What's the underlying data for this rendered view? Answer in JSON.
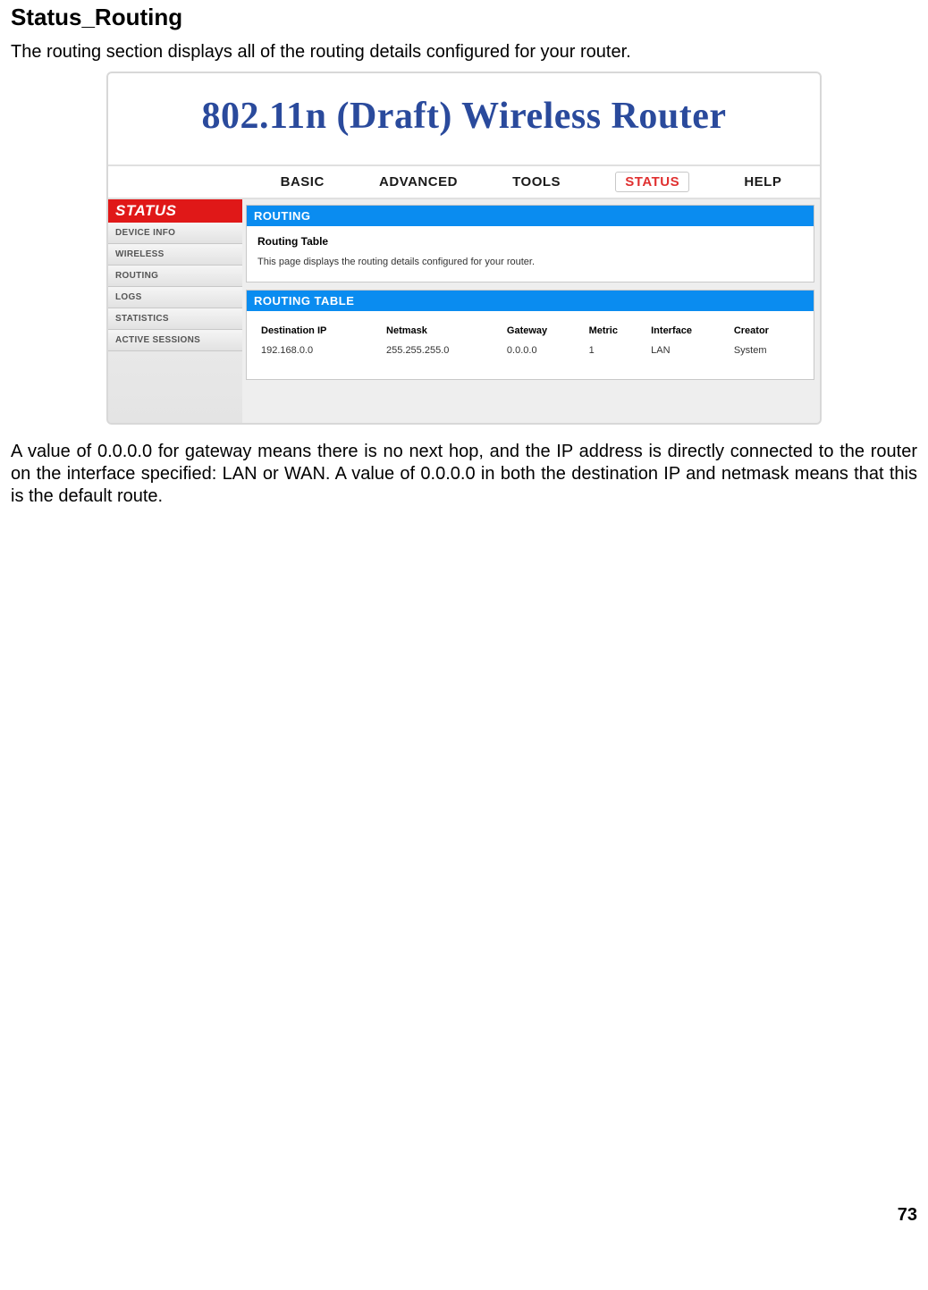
{
  "doc": {
    "heading": "Status_Routing",
    "intro": "The routing section displays all of the routing details configured for your router.",
    "footer": "A value of 0.0.0.0 for gateway means there is no next hop, and the IP address is directly connected to the router on the interface specified: LAN or WAN. A value of 0.0.0.0 in both the destination IP and netmask means that this is the default route.",
    "pageNumber": "73"
  },
  "banner": {
    "title": "802.11n (Draft) Wireless Router"
  },
  "topnav": {
    "items": [
      "BASIC",
      "ADVANCED",
      "TOOLS",
      "STATUS",
      "HELP"
    ],
    "activeIndex": 3
  },
  "sidebar": {
    "title": "STATUS",
    "items": [
      "DEVICE INFO",
      "WIRELESS",
      "ROUTING",
      "LOGS",
      "STATISTICS",
      "ACTIVE SESSIONS"
    ]
  },
  "routingPanel": {
    "head": "ROUTING",
    "subtitle": "Routing Table",
    "desc": "This page displays the routing details configured for your router."
  },
  "routingTable": {
    "head": "ROUTING TABLE",
    "columns": [
      "Destination IP",
      "Netmask",
      "Gateway",
      "Metric",
      "Interface",
      "Creator"
    ],
    "rows": [
      [
        "192.168.0.0",
        "255.255.255.0",
        "0.0.0.0",
        "1",
        "LAN",
        "System"
      ]
    ]
  }
}
